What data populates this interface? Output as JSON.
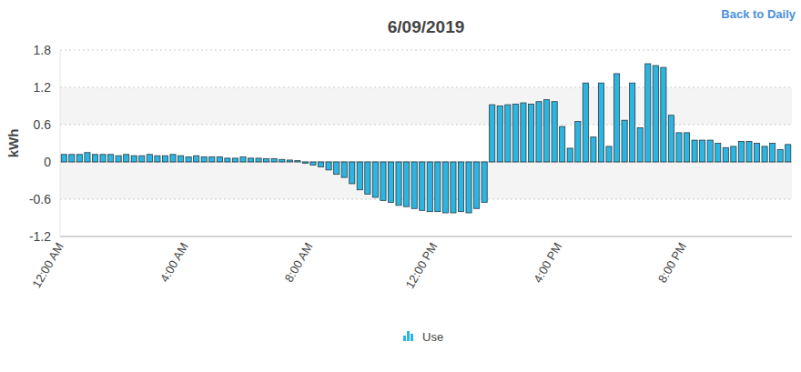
{
  "header": {
    "link": "Back to Daily"
  },
  "chart_data": {
    "type": "bar",
    "title": "6/09/2019",
    "y_label": "kWh",
    "categories": [
      "12:00 AM",
      null,
      null,
      null,
      null,
      null,
      null,
      null,
      null,
      null,
      null,
      null,
      null,
      null,
      null,
      null,
      "4:00 AM",
      null,
      null,
      null,
      null,
      null,
      null,
      null,
      null,
      null,
      null,
      null,
      null,
      null,
      null,
      null,
      "8:00 AM",
      null,
      null,
      null,
      null,
      null,
      null,
      null,
      null,
      null,
      null,
      null,
      null,
      null,
      null,
      null,
      "12:00 PM",
      null,
      null,
      null,
      null,
      null,
      null,
      null,
      null,
      null,
      null,
      null,
      null,
      null,
      null,
      null,
      "4:00 PM",
      null,
      null,
      null,
      null,
      null,
      null,
      null,
      null,
      null,
      null,
      null,
      null,
      null,
      null,
      null,
      "8:00 PM",
      null,
      null,
      null,
      null,
      null,
      null,
      null,
      null,
      null,
      null,
      null,
      null,
      null
    ],
    "series": [
      {
        "name": "Use",
        "color": "#2bb5e0",
        "values": [
          0.12,
          0.12,
          0.12,
          0.15,
          0.12,
          0.12,
          0.12,
          0.1,
          0.12,
          0.1,
          0.1,
          0.12,
          0.1,
          0.1,
          0.12,
          0.1,
          0.08,
          0.1,
          0.08,
          0.08,
          0.08,
          0.06,
          0.06,
          0.08,
          0.06,
          0.06,
          0.05,
          0.05,
          0.04,
          0.03,
          0.02,
          -0.02,
          -0.05,
          -0.08,
          -0.13,
          -0.2,
          -0.25,
          -0.35,
          -0.45,
          -0.52,
          -0.57,
          -0.62,
          -0.65,
          -0.7,
          -0.72,
          -0.75,
          -0.78,
          -0.8,
          -0.8,
          -0.82,
          -0.82,
          -0.8,
          -0.82,
          -0.75,
          -0.65,
          0.92,
          0.9,
          0.92,
          0.93,
          0.95,
          0.93,
          0.97,
          1.0,
          0.97,
          0.57,
          0.22,
          0.65,
          1.27,
          0.4,
          1.27,
          0.25,
          1.42,
          0.67,
          1.27,
          0.55,
          1.58,
          1.55,
          1.52,
          0.75,
          0.47,
          0.47,
          0.35,
          0.35,
          0.35,
          0.3,
          0.23,
          0.25,
          0.33,
          0.33,
          0.3,
          0.25,
          0.3,
          0.2,
          0.28
        ]
      }
    ],
    "ylim": [
      -1.2,
      1.8
    ],
    "yticks": [
      -1.2,
      -0.6,
      0,
      0.6,
      1.2,
      1.8
    ],
    "grid": true,
    "legend": "bottom"
  }
}
